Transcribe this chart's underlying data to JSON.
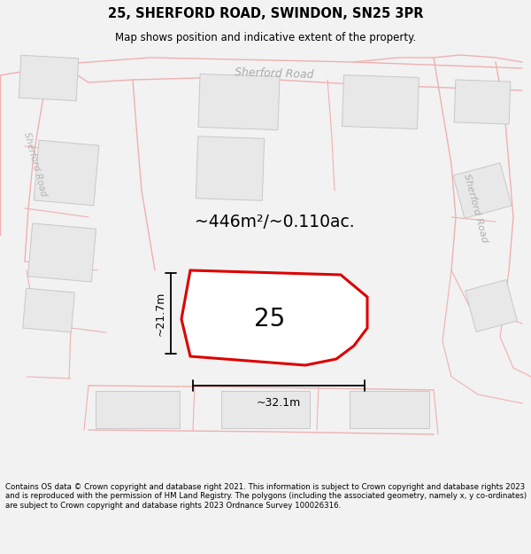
{
  "title_line1": "25, SHERFORD ROAD, SWINDON, SN25 3PR",
  "title_line2": "Map shows position and indicative extent of the property.",
  "area_text": "~446m²/~0.110ac.",
  "label_25": "25",
  "dim_width": "~32.1m",
  "dim_height": "~21.7m",
  "road_label_top": "Sherford Road",
  "road_label_left": "Sherford Road",
  "road_label_right": "Sherford Road",
  "footer_text": "Contains OS data © Crown copyright and database right 2021. This information is subject to Crown copyright and database rights 2023 and is reproduced with the permission of HM Land Registry. The polygons (including the associated geometry, namely x, y co-ordinates) are subject to Crown copyright and database rights 2023 Ordnance Survey 100026316.",
  "bg_color": "#f2f2f2",
  "map_bg": "#ffffff",
  "road_line_color": "#f0b0b0",
  "building_face_color": "#e8e8e8",
  "building_edge_color": "#c8c8c8",
  "plot_color": "#dd0000",
  "text_color_road_top": "#aaaaaa",
  "text_color_road_side": "#bbbbbb",
  "footer_color": "#000000",
  "title_color": "#000000",
  "dim_color": "#000000"
}
